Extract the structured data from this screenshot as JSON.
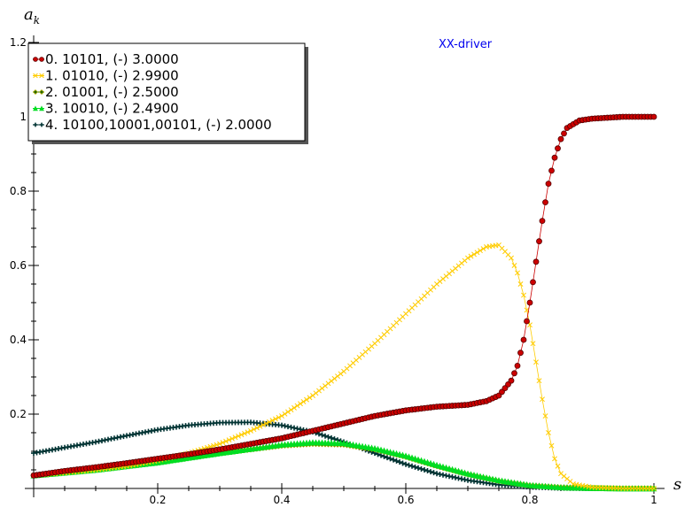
{
  "chart_data": {
    "type": "scatter",
    "title": "",
    "annotation": "XX-driver",
    "xlabel": "s",
    "ylabel": "a_k",
    "xlim": [
      0,
      1
    ],
    "ylim": [
      0,
      1.2
    ],
    "xticks": [
      0.2,
      0.4,
      0.6,
      0.8,
      1
    ],
    "xtick_labels": [
      "0.2",
      "0.4",
      "0.6",
      "0.8",
      "1"
    ],
    "yticks": [
      0.2,
      0.4,
      0.6,
      0.8,
      1,
      1.2
    ],
    "ytick_labels": [
      "0.2",
      "0.4",
      "0.6",
      "0.8",
      "1",
      "1.2"
    ],
    "grid": false,
    "legend_position": "top-left",
    "series": [
      {
        "name": "0. 10101, (-) 3.0000",
        "color": "#cc0000",
        "edge": "#550000",
        "marker": "circle",
        "x": [
          0,
          0.05,
          0.1,
          0.15,
          0.2,
          0.25,
          0.3,
          0.35,
          0.4,
          0.45,
          0.5,
          0.55,
          0.6,
          0.65,
          0.7,
          0.73,
          0.75,
          0.77,
          0.78,
          0.79,
          0.8,
          0.81,
          0.82,
          0.83,
          0.84,
          0.85,
          0.86,
          0.88,
          0.9,
          0.95,
          1
        ],
        "y": [
          0.035,
          0.047,
          0.057,
          0.068,
          0.08,
          0.092,
          0.105,
          0.12,
          0.135,
          0.155,
          0.175,
          0.195,
          0.21,
          0.22,
          0.225,
          0.235,
          0.25,
          0.29,
          0.33,
          0.4,
          0.5,
          0.61,
          0.72,
          0.82,
          0.89,
          0.94,
          0.97,
          0.99,
          0.995,
          1.0,
          1.0
        ]
      },
      {
        "name": "1. 01010, (-) 2.9900",
        "color": "#ffcc00",
        "edge": "#ffcc00",
        "marker": "x",
        "x": [
          0,
          0.05,
          0.1,
          0.15,
          0.2,
          0.25,
          0.3,
          0.35,
          0.4,
          0.45,
          0.5,
          0.55,
          0.6,
          0.65,
          0.7,
          0.73,
          0.75,
          0.77,
          0.78,
          0.79,
          0.8,
          0.81,
          0.82,
          0.83,
          0.84,
          0.85,
          0.87,
          0.9,
          0.95,
          1
        ],
        "y": [
          0.035,
          0.042,
          0.05,
          0.06,
          0.075,
          0.095,
          0.12,
          0.155,
          0.195,
          0.25,
          0.315,
          0.39,
          0.47,
          0.55,
          0.62,
          0.65,
          0.655,
          0.62,
          0.58,
          0.52,
          0.44,
          0.34,
          0.24,
          0.15,
          0.08,
          0.04,
          0.012,
          0.003,
          0,
          0
        ]
      },
      {
        "name": "2. 01001, (-) 2.5000",
        "color": "#226600",
        "edge": "#aaaa00",
        "marker": "diamond",
        "x": [
          0,
          0.1,
          0.2,
          0.3,
          0.4,
          0.45,
          0.5,
          0.55,
          0.6,
          0.65,
          0.7,
          0.75,
          0.8,
          0.85,
          0.9,
          0.95,
          1
        ],
        "y": [
          0.035,
          0.05,
          0.07,
          0.095,
          0.115,
          0.12,
          0.118,
          0.105,
          0.085,
          0.06,
          0.038,
          0.02,
          0.008,
          0.003,
          0.001,
          0,
          0
        ]
      },
      {
        "name": "3. 10010, (-) 2.4900",
        "color": "#00dd22",
        "edge": "#00dd22",
        "marker": "triangle",
        "x": [
          0,
          0.1,
          0.2,
          0.3,
          0.4,
          0.45,
          0.5,
          0.55,
          0.6,
          0.65,
          0.7,
          0.75,
          0.8,
          0.85,
          0.9,
          0.95,
          1
        ],
        "y": [
          0.035,
          0.05,
          0.07,
          0.095,
          0.118,
          0.124,
          0.122,
          0.108,
          0.088,
          0.063,
          0.04,
          0.022,
          0.009,
          0.003,
          0.001,
          0,
          0
        ]
      },
      {
        "name": "4. 10100,10001,00101, (-) 2.0000",
        "color": "#003333",
        "edge": "#00aaaa",
        "marker": "star",
        "x": [
          0,
          0.05,
          0.1,
          0.15,
          0.2,
          0.25,
          0.3,
          0.35,
          0.4,
          0.45,
          0.5,
          0.55,
          0.6,
          0.65,
          0.7,
          0.75,
          0.8,
          0.85,
          0.9,
          0.95,
          1
        ],
        "y": [
          0.095,
          0.11,
          0.125,
          0.142,
          0.158,
          0.17,
          0.177,
          0.178,
          0.17,
          0.152,
          0.125,
          0.095,
          0.065,
          0.04,
          0.022,
          0.01,
          0.004,
          0.001,
          0,
          0,
          0
        ]
      }
    ]
  }
}
